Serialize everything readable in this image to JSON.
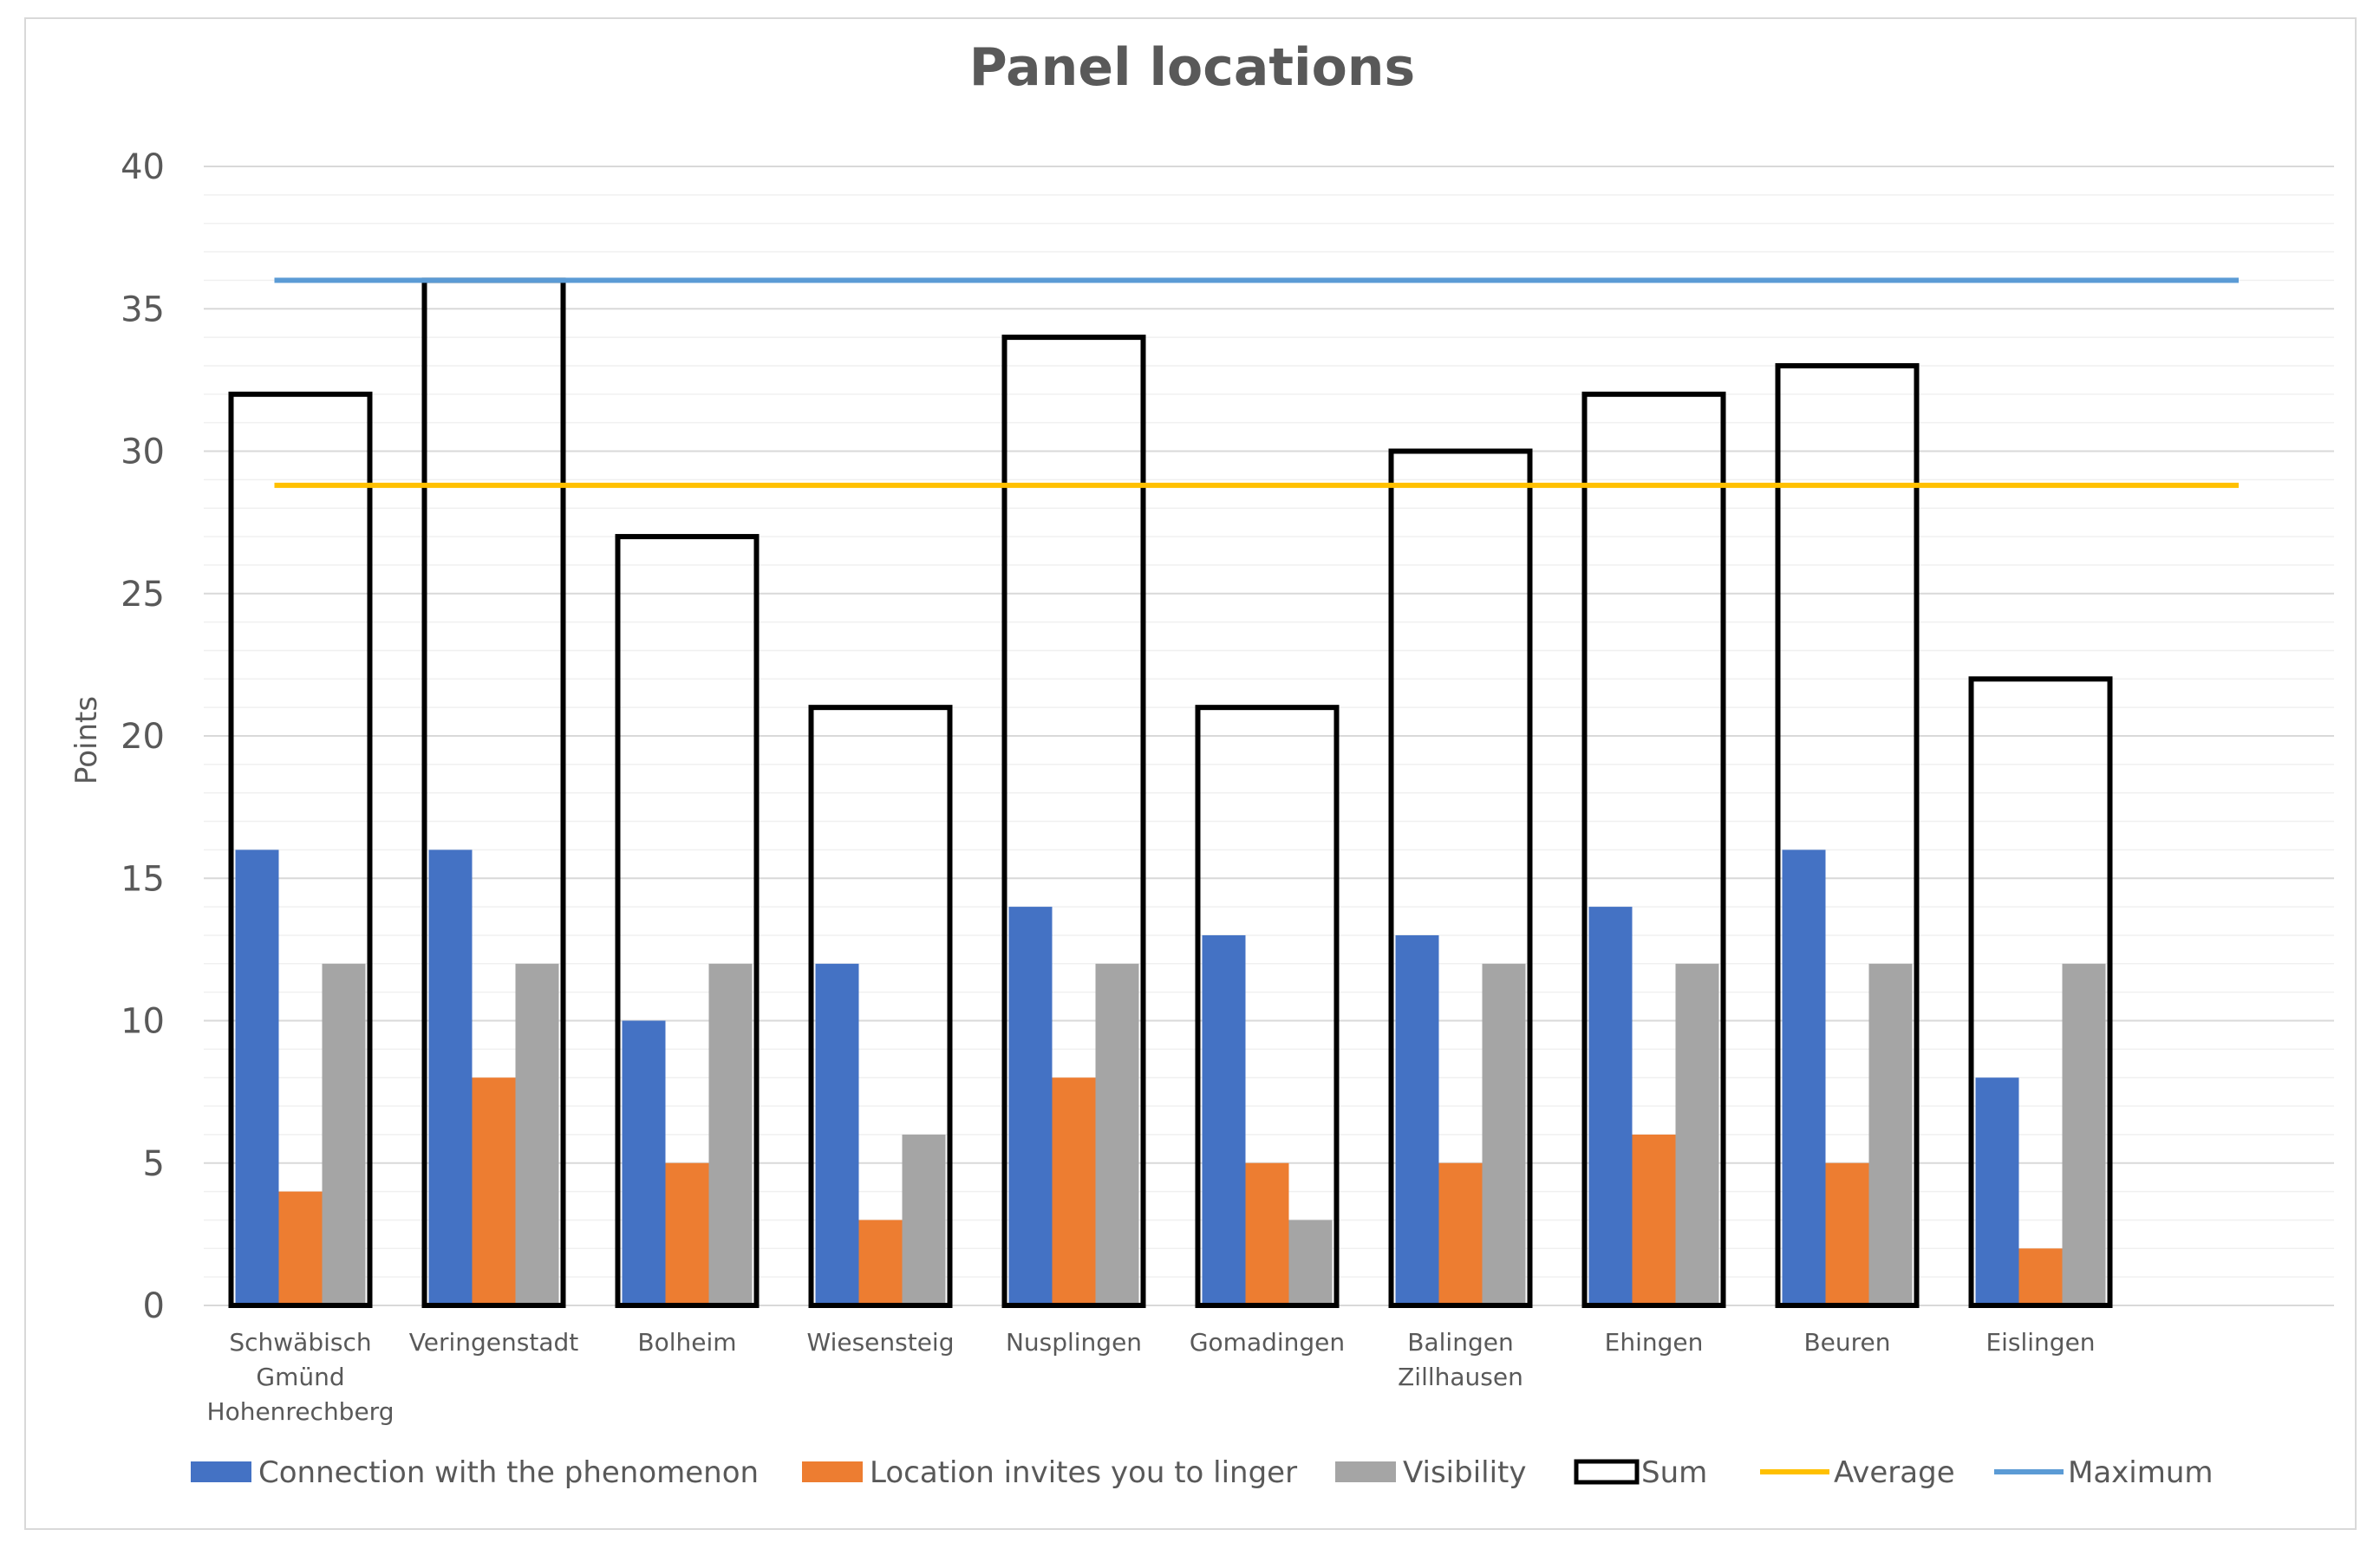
{
  "chart_data": {
    "type": "bar",
    "title": "Panel locations",
    "xlabel": "",
    "ylabel": "Points",
    "ylim": [
      0,
      40
    ],
    "yticks": [
      "0",
      "5",
      "10",
      "15",
      "20",
      "25",
      "30",
      "35",
      "40"
    ],
    "categories": [
      [
        "Schwäbisch",
        "Gmünd",
        "Hohenrechberg"
      ],
      [
        "Veringenstadt"
      ],
      [
        "Bolheim"
      ],
      [
        "Wiesensteig"
      ],
      [
        "Nusplingen"
      ],
      [
        "Gomadingen"
      ],
      [
        "Balingen",
        "Zillhausen"
      ],
      [
        "Ehingen"
      ],
      [
        "Beuren"
      ],
      [
        "Eislingen"
      ]
    ],
    "series": [
      {
        "name": "Connection with the phenomenon",
        "color": "#4472c4",
        "values": [
          16,
          16,
          10,
          12,
          14,
          13,
          13,
          14,
          16,
          8
        ]
      },
      {
        "name": "Location invites you to linger",
        "color": "#ed7d31",
        "values": [
          4,
          8,
          5,
          3,
          8,
          5,
          5,
          6,
          5,
          2
        ]
      },
      {
        "name": "Visibility",
        "color": "#a5a5a5",
        "values": [
          12,
          12,
          12,
          6,
          12,
          3,
          12,
          12,
          12,
          12
        ]
      },
      {
        "name": "Sum",
        "color": "#000000",
        "style": "outline",
        "values": [
          32,
          36,
          27,
          21,
          34,
          21,
          30,
          32,
          33,
          22
        ]
      }
    ],
    "reference_lines": [
      {
        "name": "Average",
        "color": "#ffc000",
        "value": 28.8
      },
      {
        "name": "Maximum",
        "color": "#5b9bd5",
        "value": 36
      }
    ],
    "legend_position": "bottom",
    "grid": true
  }
}
